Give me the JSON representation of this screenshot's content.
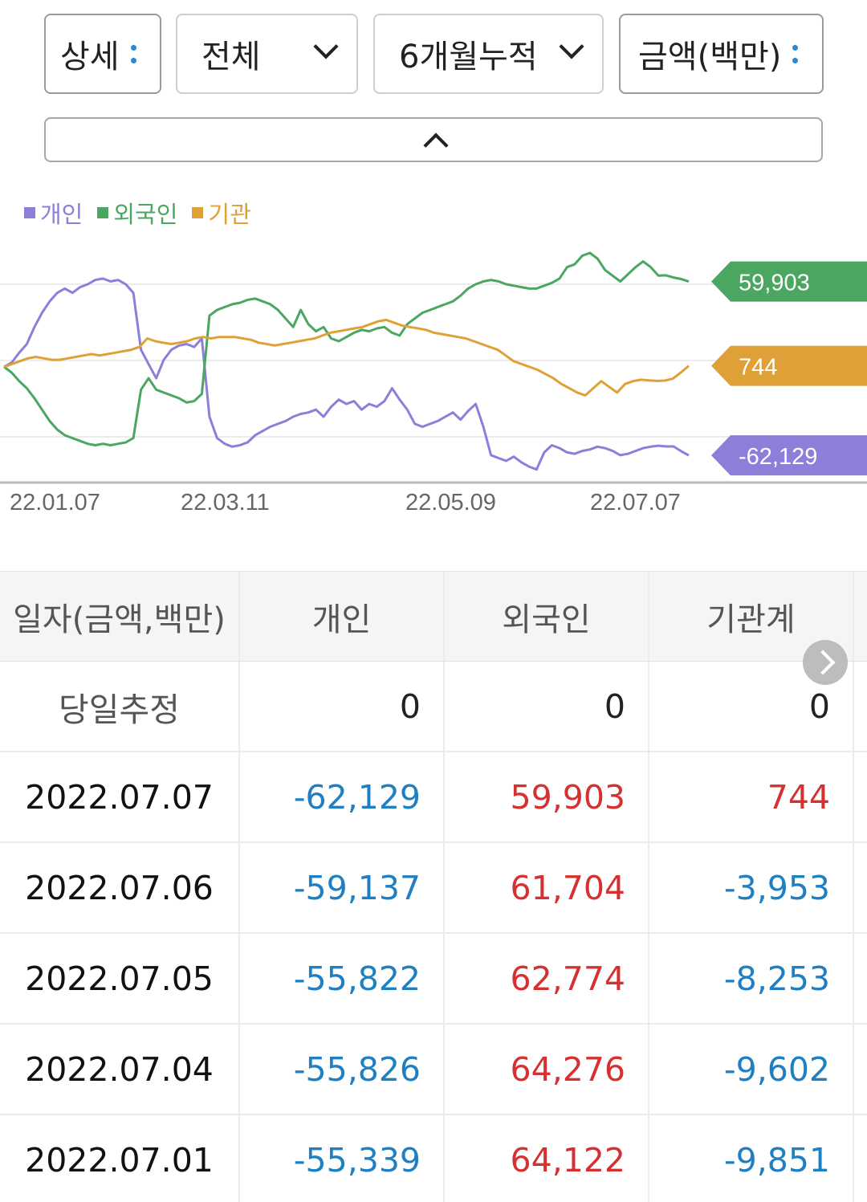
{
  "filters": {
    "detail": "상세",
    "market": "전체",
    "period": "6개월누적",
    "unit": "금액(백만)"
  },
  "legend": [
    {
      "label": "개인",
      "color": "#8b7fd9"
    },
    {
      "label": "외국인",
      "color": "#4aa660"
    },
    {
      "label": "기관",
      "color": "#e0a038"
    }
  ],
  "chart_data": {
    "type": "line",
    "x_tick_labels": [
      "22.01.07",
      "22.03.11",
      "22.05.09",
      "22.07.07"
    ],
    "series": [
      {
        "name": "개인",
        "color": "#8b7fd9",
        "last_label": "-62,129",
        "values": [
          0,
          3000,
          10000,
          16000,
          28000,
          38000,
          46000,
          52000,
          55000,
          52000,
          56000,
          58000,
          61000,
          62000,
          60000,
          61000,
          58000,
          52000,
          12000,
          2000,
          -8000,
          5000,
          12000,
          15000,
          16000,
          14000,
          20000,
          -35000,
          -50000,
          -54000,
          -56000,
          -55000,
          -53000,
          -48000,
          -45000,
          -42000,
          -40000,
          -38000,
          -35000,
          -33000,
          -32000,
          -30000,
          -35000,
          -28000,
          -23000,
          -26000,
          -24000,
          -30000,
          -26000,
          -28000,
          -24000,
          -15000,
          -23000,
          -30000,
          -40000,
          -42000,
          -40000,
          -38000,
          -35000,
          -32000,
          -37000,
          -31000,
          -26000,
          -42000,
          -62000,
          -64000,
          -66000,
          -63000,
          -67000,
          -70000,
          -72000,
          -60000,
          -55000,
          -57000,
          -60000,
          -61000,
          -59000,
          -58000,
          -56000,
          -57000,
          -59000,
          -62000,
          -61000,
          -59000,
          -57000,
          -56000,
          -55339,
          -55826,
          -55822,
          -59137,
          -62129
        ]
      },
      {
        "name": "외국인",
        "color": "#4aa660",
        "last_label": "59,903",
        "values": [
          0,
          -4000,
          -10000,
          -15000,
          -22000,
          -30000,
          -38000,
          -44000,
          -48000,
          -50000,
          -52000,
          -54000,
          -55000,
          -54000,
          -55000,
          -54000,
          -53000,
          -50000,
          -16000,
          -8000,
          -16000,
          -18000,
          -20000,
          -22000,
          -25000,
          -24000,
          -19000,
          36000,
          40000,
          42000,
          44000,
          45000,
          47000,
          48000,
          46000,
          44000,
          40000,
          34000,
          28000,
          40000,
          30000,
          25000,
          28000,
          20000,
          18000,
          21000,
          24000,
          26000,
          25000,
          27000,
          28000,
          24000,
          22000,
          30000,
          34000,
          38000,
          40000,
          42000,
          44000,
          46000,
          50000,
          55000,
          58000,
          60000,
          61000,
          60000,
          58000,
          57000,
          56000,
          55000,
          55000,
          57000,
          59000,
          62000,
          70000,
          72000,
          78000,
          80000,
          76000,
          68000,
          64000,
          60000,
          65000,
          70000,
          74000,
          70000,
          64122,
          64276,
          62774,
          61704,
          59903
        ]
      },
      {
        "name": "기관",
        "color": "#e0a038",
        "last_label": "744",
        "values": [
          0,
          2000,
          4000,
          6000,
          7000,
          6000,
          5000,
          5000,
          6000,
          7000,
          8000,
          9000,
          8000,
          9000,
          10000,
          11000,
          12000,
          14000,
          20000,
          18000,
          17000,
          16000,
          17000,
          18000,
          20000,
          21000,
          20000,
          21000,
          21000,
          21000,
          20000,
          19000,
          17000,
          16000,
          15000,
          16000,
          17000,
          18000,
          19000,
          20000,
          22000,
          24000,
          25000,
          26000,
          27000,
          28000,
          30000,
          32000,
          33000,
          31000,
          29000,
          28000,
          27000,
          26000,
          24000,
          23000,
          22000,
          21000,
          20000,
          18000,
          16000,
          14000,
          12000,
          8000,
          4000,
          2000,
          0,
          -2000,
          -5000,
          -8000,
          -12000,
          -15000,
          -18000,
          -20000,
          -15000,
          -10000,
          -14000,
          -18000,
          -12000,
          -10000,
          -9000,
          -9500,
          -9851,
          -9602,
          -8253,
          -3953,
          744
        ]
      }
    ],
    "ylim": [
      -75000,
      80000
    ],
    "legend_position": "top-left"
  },
  "table": {
    "headers": [
      "일자(금액,백만)",
      "개인",
      "외국인",
      "기관계"
    ],
    "rows": [
      {
        "date": "당일추정",
        "indiv": "0",
        "foreign": "0",
        "inst": "0",
        "cls": [
          "zero",
          "zero",
          "zero"
        ]
      },
      {
        "date": "2022.07.07",
        "indiv": "-62,129",
        "foreign": "59,903",
        "inst": "744",
        "cls": [
          "neg",
          "pos",
          "pos"
        ]
      },
      {
        "date": "2022.07.06",
        "indiv": "-59,137",
        "foreign": "61,704",
        "inst": "-3,953",
        "cls": [
          "neg",
          "pos",
          "neg"
        ]
      },
      {
        "date": "2022.07.05",
        "indiv": "-55,822",
        "foreign": "62,774",
        "inst": "-8,253",
        "cls": [
          "neg",
          "pos",
          "neg"
        ]
      },
      {
        "date": "2022.07.04",
        "indiv": "-55,826",
        "foreign": "64,276",
        "inst": "-9,602",
        "cls": [
          "neg",
          "pos",
          "neg"
        ]
      },
      {
        "date": "2022.07.01",
        "indiv": "-55,339",
        "foreign": "64,122",
        "inst": "-9,851",
        "cls": [
          "neg",
          "pos",
          "neg"
        ]
      }
    ]
  }
}
